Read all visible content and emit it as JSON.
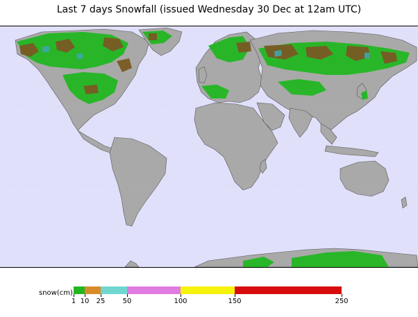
{
  "title": "Last 7 days Snowfall (issued Wednesday 30 Dec at 12am UTC)",
  "legend": {
    "label": "snow(cm)",
    "segments": [
      {
        "from": 1,
        "to": 10,
        "color": "#22b722"
      },
      {
        "from": 10,
        "to": 25,
        "color": "#d98b2a"
      },
      {
        "from": 25,
        "to": 50,
        "color": "#6fd7cf"
      },
      {
        "from": 50,
        "to": 100,
        "color": "#e07be0"
      },
      {
        "from": 100,
        "to": 150,
        "color": "#f5f20c"
      },
      {
        "from": 150,
        "to": 250,
        "color": "#d80c0c"
      }
    ],
    "ticks": [
      "1",
      "10",
      "25",
      "50",
      "100",
      "150",
      "250"
    ]
  },
  "colors": {
    "ocean": "#e0e0fb",
    "land": "#a9a9a9",
    "land_shade": "#8c8c8c",
    "snow_light": "#22b722",
    "snow_medium": "#7a5a24",
    "snow_teal": "#3fa6a8"
  }
}
